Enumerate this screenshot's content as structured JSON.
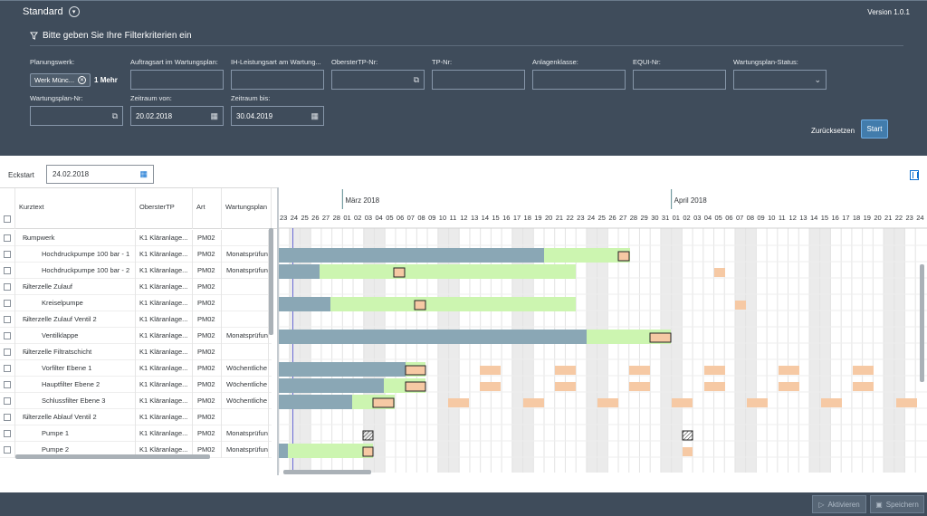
{
  "header": {
    "variant": "Standard",
    "version": "Version 1.0.1",
    "filter_title": "Bitte geben Sie Ihre Filterkriterien ein"
  },
  "filters": {
    "planungswerk": {
      "label": "Planungswerk:",
      "token": "Werk Münc...",
      "more": "1 Mehr"
    },
    "auftragsart": {
      "label": "Auftragsart im Wartungsplan:",
      "value": ""
    },
    "ihleistungsart": {
      "label": "IH-Leistungsart am Wartung...",
      "value": ""
    },
    "obertp": {
      "label": "ObersterTP-Nr:",
      "value": ""
    },
    "tp": {
      "label": "TP-Nr:",
      "value": ""
    },
    "anlagenklasse": {
      "label": "Anlagenklasse:",
      "value": ""
    },
    "equi": {
      "label": "EQUI-Nr:",
      "value": ""
    },
    "status": {
      "label": "Wartungsplan-Status:",
      "value": ""
    },
    "wpnr": {
      "label": "Wartungsplan-Nr:",
      "value": ""
    },
    "von": {
      "label": "Zeitraum von:",
      "value": "20.02.2018"
    },
    "bis": {
      "label": "Zeitraum bis:",
      "value": "30.04.2019"
    },
    "reset_label": "Zurücksetzen",
    "start_label": "Start"
  },
  "eckstart": {
    "label": "Eckstart",
    "value": "24.02.2018"
  },
  "table": {
    "headers": [
      "Kurztext",
      "ObersterTP",
      "Art",
      "Wartungsplan"
    ],
    "rows": [
      {
        "text": "Pumpwerk",
        "group": true,
        "tp": "K1 Kläranlage...",
        "art": "PM02",
        "wp": ""
      },
      {
        "text": "Hochdruckpumpe 100 bar - 1",
        "group": false,
        "tp": "K1 Kläranlage...",
        "art": "PM02",
        "wp": "Monatsprüfun"
      },
      {
        "text": "Hochdruckpumpe 100 bar - 2",
        "group": false,
        "tp": "K1 Kläranlage...",
        "art": "PM02",
        "wp": "Monatsprüfun"
      },
      {
        "text": "Filterzelle Zulauf",
        "group": true,
        "tp": "K1 Kläranlage...",
        "art": "PM02",
        "wp": ""
      },
      {
        "text": "Kreiselpumpe",
        "group": false,
        "tp": "K1 Kläranlage...",
        "art": "PM02",
        "wp": ""
      },
      {
        "text": "Filterzelle Zulauf Ventil 2",
        "group": true,
        "tp": "K1 Kläranlage...",
        "art": "PM02",
        "wp": ""
      },
      {
        "text": "Ventilklappe",
        "group": false,
        "tp": "K1 Kläranlage...",
        "art": "PM02",
        "wp": "Monatsprüfun"
      },
      {
        "text": "Filterzelle Filtratschicht",
        "group": true,
        "tp": "K1 Kläranlage...",
        "art": "PM02",
        "wp": ""
      },
      {
        "text": "Vorfilter Ebene 1",
        "group": false,
        "tp": "K1 Kläranlage...",
        "art": "PM02",
        "wp": "Wöchentliche"
      },
      {
        "text": "Hauptfilter Ebene 2",
        "group": false,
        "tp": "K1 Kläranlage...",
        "art": "PM02",
        "wp": "Wöchentliche"
      },
      {
        "text": "Schlussfilter Ebene 3",
        "group": false,
        "tp": "K1 Kläranlage...",
        "art": "PM02",
        "wp": "Wöchentliche"
      },
      {
        "text": "Filterzelle Ablauf Ventil 2",
        "group": true,
        "tp": "K1 Kläranlage...",
        "art": "PM02",
        "wp": ""
      },
      {
        "text": "Pumpe 1",
        "group": false,
        "tp": "K1 Kläranlage...",
        "art": "PM02",
        "wp": "Monatsprüfun"
      },
      {
        "text": "Pumpe 2",
        "group": false,
        "tp": "K1 Kläranlage...",
        "art": "PM02",
        "wp": "Monatsprüfun"
      }
    ]
  },
  "timeline": {
    "months": [
      "März 2018",
      "April 2018"
    ],
    "days": [
      "23",
      "24",
      "25",
      "26",
      "27",
      "28",
      "01",
      "02",
      "03",
      "04",
      "05",
      "06",
      "07",
      "08",
      "09",
      "10",
      "11",
      "12",
      "13",
      "14",
      "15",
      "16",
      "17",
      "18",
      "19",
      "20",
      "21",
      "22",
      "23",
      "24",
      "25",
      "26",
      "27",
      "28",
      "29",
      "30",
      "31",
      "01",
      "02",
      "03",
      "04",
      "05",
      "06",
      "07",
      "08",
      "09",
      "10",
      "11",
      "12",
      "13",
      "14",
      "15",
      "16",
      "17",
      "18",
      "19",
      "20",
      "21",
      "22",
      "23",
      "24"
    ]
  },
  "footer": {
    "activate": "Aktivieren",
    "save": "Speichern"
  },
  "colors": {
    "header_bg": "#3f4c5b",
    "bar_done": "#8aa7b5",
    "bar_planned": "#ccf5b0",
    "task": "#f6c9a4",
    "accent": "#0a6ed1",
    "marker": "#d06b1f"
  }
}
